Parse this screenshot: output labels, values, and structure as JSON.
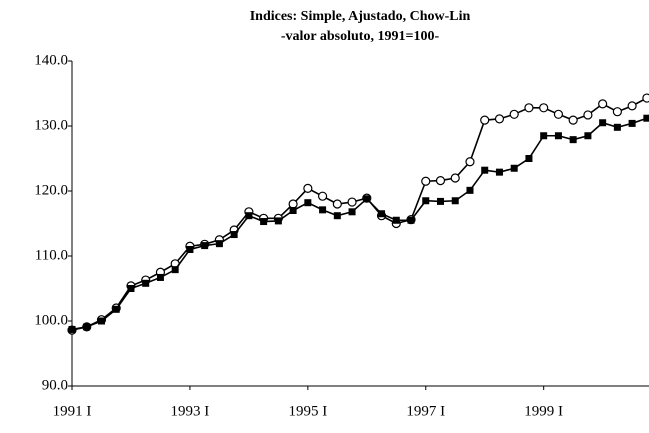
{
  "chart_data": {
    "type": "line",
    "title": "Indices: Simple, Ajustado, Chow-Lin",
    "subtitle": "-valor absoluto, 1991=100-",
    "categories": [
      "1991 I",
      null,
      null,
      null,
      null,
      null,
      null,
      null,
      "1993 I",
      null,
      null,
      null,
      null,
      null,
      null,
      null,
      "1995 I",
      null,
      null,
      null,
      null,
      null,
      null,
      null,
      "1997 I",
      null,
      null,
      null,
      null,
      null,
      null,
      null,
      "1999 I",
      null,
      null,
      null,
      null,
      null,
      null,
      null
    ],
    "ylim": [
      90,
      140
    ],
    "yticks": [
      {
        "value": 90,
        "label": "90.0"
      },
      {
        "value": 100,
        "label": "100.0"
      },
      {
        "value": 110,
        "label": "110.0"
      },
      {
        "value": 120,
        "label": "120.0"
      },
      {
        "value": 130,
        "label": "130.0"
      },
      {
        "value": 140,
        "label": "140.0"
      }
    ],
    "grid": false,
    "series": [
      {
        "color": "#000000",
        "marker": "circle",
        "values": [
          98.6,
          99.1,
          100.2,
          102.0,
          105.4,
          106.3,
          107.5,
          108.8,
          111.5,
          111.8,
          112.5,
          114.0,
          116.8,
          115.8,
          115.8,
          118.0,
          120.4,
          119.2,
          118.0,
          118.3,
          118.9,
          116.2,
          115.0,
          115.6,
          121.5,
          121.6,
          122.0,
          124.5,
          130.9,
          131.1,
          131.8,
          132.8,
          132.8,
          131.8,
          130.9,
          131.7,
          133.4,
          132.2,
          133.1,
          134.3
        ]
      },
      {
        "color": "#000000",
        "marker": "square",
        "values": [
          98.7,
          99.1,
          100.0,
          101.8,
          105.0,
          105.8,
          106.7,
          107.9,
          111.0,
          111.6,
          111.9,
          113.3,
          116.2,
          115.3,
          115.4,
          117.0,
          118.2,
          117.1,
          116.2,
          116.8,
          118.8,
          116.5,
          115.5,
          115.5,
          118.5,
          118.4,
          118.5,
          120.1,
          123.2,
          122.9,
          123.5,
          125.0,
          128.5,
          128.5,
          127.9,
          128.5,
          130.5,
          129.8,
          130.4,
          131.2
        ]
      }
    ]
  }
}
